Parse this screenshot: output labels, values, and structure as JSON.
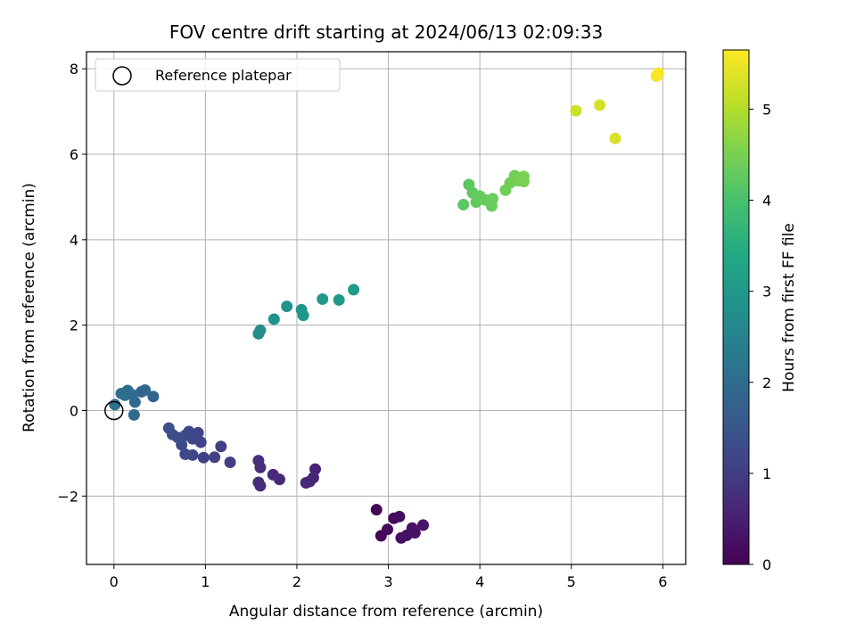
{
  "chart_data": {
    "type": "scatter",
    "title": "FOV centre drift starting at 2024/06/13 02:09:33",
    "xlabel": "Angular distance from reference (arcmin)",
    "ylabel": "Rotation from reference (arcmin)",
    "xlim": [
      -0.3,
      6.25
    ],
    "ylim": [
      -3.6,
      8.4
    ],
    "xticks": [
      "0",
      "1",
      "2",
      "3",
      "4",
      "5",
      "6"
    ],
    "xtick_values": [
      0,
      1,
      2,
      3,
      4,
      5,
      6
    ],
    "yticks": [
      "−2",
      "0",
      "2",
      "4",
      "6",
      "8"
    ],
    "ytick_values": [
      -2,
      0,
      2,
      4,
      6,
      8
    ],
    "grid": true,
    "legend": {
      "label": "Reference platepar",
      "placement": "upper-left"
    },
    "reference_marker": {
      "x": 0,
      "y": 0
    },
    "colorbar": {
      "label": "Hours from first FF file",
      "min": 0,
      "max": 5.65,
      "colormap": "viridis",
      "ticks": [
        "0",
        "1",
        "2",
        "3",
        "4",
        "5"
      ],
      "tick_values": [
        0,
        1,
        2,
        3,
        4,
        5
      ]
    },
    "points": [
      {
        "x": 2.87,
        "y": -2.32,
        "c": 0.05
      },
      {
        "x": 2.92,
        "y": -2.93,
        "c": 0.08
      },
      {
        "x": 2.99,
        "y": -2.78,
        "c": 0.12
      },
      {
        "x": 3.06,
        "y": -2.52,
        "c": 0.15
      },
      {
        "x": 3.12,
        "y": -2.48,
        "c": 0.18
      },
      {
        "x": 3.14,
        "y": -2.98,
        "c": 0.22
      },
      {
        "x": 3.2,
        "y": -2.92,
        "c": 0.25
      },
      {
        "x": 3.26,
        "y": -2.75,
        "c": 0.28
      },
      {
        "x": 3.29,
        "y": -2.86,
        "c": 0.3
      },
      {
        "x": 3.38,
        "y": -2.68,
        "c": 0.33
      },
      {
        "x": 2.2,
        "y": -1.37,
        "c": 0.55
      },
      {
        "x": 2.18,
        "y": -1.57,
        "c": 0.58
      },
      {
        "x": 2.14,
        "y": -1.66,
        "c": 0.6
      },
      {
        "x": 2.1,
        "y": -1.69,
        "c": 0.62
      },
      {
        "x": 1.81,
        "y": -1.61,
        "c": 0.65
      },
      {
        "x": 1.74,
        "y": -1.5,
        "c": 0.68
      },
      {
        "x": 1.6,
        "y": -1.76,
        "c": 0.7
      },
      {
        "x": 1.58,
        "y": -1.68,
        "c": 0.72
      },
      {
        "x": 1.6,
        "y": -1.33,
        "c": 0.74
      },
      {
        "x": 1.58,
        "y": -1.17,
        "c": 0.76
      },
      {
        "x": 1.27,
        "y": -1.21,
        "c": 1.0
      },
      {
        "x": 1.17,
        "y": -0.84,
        "c": 1.05
      },
      {
        "x": 1.1,
        "y": -1.09,
        "c": 1.08
      },
      {
        "x": 0.98,
        "y": -1.1,
        "c": 1.1
      },
      {
        "x": 0.95,
        "y": -0.74,
        "c": 1.13
      },
      {
        "x": 0.92,
        "y": -0.52,
        "c": 1.15
      },
      {
        "x": 0.86,
        "y": -1.04,
        "c": 1.18
      },
      {
        "x": 0.86,
        "y": -0.66,
        "c": 1.2
      },
      {
        "x": 0.82,
        "y": -0.49,
        "c": 1.22
      },
      {
        "x": 0.78,
        "y": -1.02,
        "c": 1.25
      },
      {
        "x": 0.78,
        "y": -0.58,
        "c": 1.28
      },
      {
        "x": 0.74,
        "y": -0.8,
        "c": 1.3
      },
      {
        "x": 0.7,
        "y": -0.63,
        "c": 1.33
      },
      {
        "x": 0.64,
        "y": -0.56,
        "c": 1.35
      },
      {
        "x": 0.6,
        "y": -0.41,
        "c": 1.38
      },
      {
        "x": 0.43,
        "y": 0.33,
        "c": 1.8
      },
      {
        "x": 0.34,
        "y": 0.48,
        "c": 1.85
      },
      {
        "x": 0.3,
        "y": 0.44,
        "c": 1.88
      },
      {
        "x": 0.23,
        "y": 0.2,
        "c": 1.92
      },
      {
        "x": 0.22,
        "y": -0.1,
        "c": 1.95
      },
      {
        "x": 0.2,
        "y": 0.37,
        "c": 1.98
      },
      {
        "x": 0.15,
        "y": 0.47,
        "c": 2.0
      },
      {
        "x": 0.12,
        "y": 0.36,
        "c": 2.02
      },
      {
        "x": 0.08,
        "y": 0.4,
        "c": 2.05
      },
      {
        "x": 0.01,
        "y": 0.14,
        "c": 2.1
      },
      {
        "x": 1.58,
        "y": 1.8,
        "c": 2.75
      },
      {
        "x": 1.6,
        "y": 1.88,
        "c": 2.78
      },
      {
        "x": 1.75,
        "y": 2.14,
        "c": 2.82
      },
      {
        "x": 1.89,
        "y": 2.44,
        "c": 2.86
      },
      {
        "x": 2.05,
        "y": 2.36,
        "c": 2.9
      },
      {
        "x": 2.07,
        "y": 2.23,
        "c": 2.94
      },
      {
        "x": 2.28,
        "y": 2.61,
        "c": 3.0
      },
      {
        "x": 2.46,
        "y": 2.59,
        "c": 3.05
      },
      {
        "x": 2.62,
        "y": 2.83,
        "c": 3.1
      },
      {
        "x": 3.82,
        "y": 4.82,
        "c": 4.2
      },
      {
        "x": 3.88,
        "y": 5.29,
        "c": 4.22
      },
      {
        "x": 3.92,
        "y": 5.1,
        "c": 4.25
      },
      {
        "x": 3.96,
        "y": 4.88,
        "c": 4.27
      },
      {
        "x": 4.0,
        "y": 5.02,
        "c": 4.3
      },
      {
        "x": 4.06,
        "y": 4.93,
        "c": 4.32
      },
      {
        "x": 4.13,
        "y": 4.79,
        "c": 4.34
      },
      {
        "x": 4.14,
        "y": 4.96,
        "c": 4.36
      },
      {
        "x": 4.28,
        "y": 5.16,
        "c": 4.4
      },
      {
        "x": 4.33,
        "y": 5.33,
        "c": 4.42
      },
      {
        "x": 4.38,
        "y": 5.5,
        "c": 4.44
      },
      {
        "x": 4.42,
        "y": 5.38,
        "c": 4.46
      },
      {
        "x": 4.44,
        "y": 5.45,
        "c": 4.48
      },
      {
        "x": 4.48,
        "y": 5.48,
        "c": 4.5
      },
      {
        "x": 4.48,
        "y": 5.36,
        "c": 4.52
      },
      {
        "x": 5.05,
        "y": 7.02,
        "c": 5.2
      },
      {
        "x": 5.31,
        "y": 7.15,
        "c": 5.28
      },
      {
        "x": 5.48,
        "y": 6.37,
        "c": 5.32
      },
      {
        "x": 5.93,
        "y": 7.83,
        "c": 5.58
      },
      {
        "x": 5.95,
        "y": 7.9,
        "c": 5.63
      }
    ]
  }
}
